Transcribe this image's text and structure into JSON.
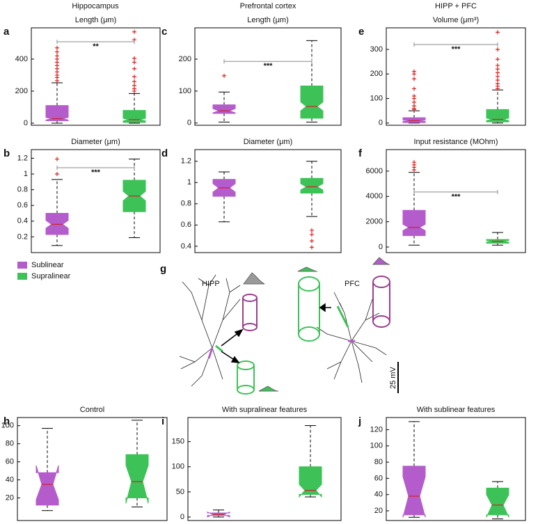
{
  "legend": [
    {
      "name": "Sublinear",
      "color": "#b45ccb"
    },
    {
      "name": "Supralinear",
      "color": "#3dc257"
    }
  ],
  "column_titles": [
    "Hippocampus",
    "Prefrontal cortex",
    "HIPP + PFC"
  ],
  "diagram": {
    "label": "g",
    "hipp": "HIPP",
    "pfc": "PFC",
    "scale": "25 mV"
  },
  "chart_data": [
    {
      "type": "box",
      "label": "a",
      "title": "Length (μm)",
      "ylim": [
        -13,
        595
      ],
      "yticks": [
        0,
        200,
        400
      ],
      "boxes": [
        {
          "whisker_low": 0,
          "q1": 15,
          "notch_low": 20,
          "median": 28,
          "notch_high": 36,
          "q3": 110,
          "whisker_high": 252,
          "outliers": [
            265,
            285,
            300,
            320,
            340,
            360,
            380,
            400,
            420,
            445,
            470
          ]
        },
        {
          "whisker_low": 0,
          "q1": 5,
          "notch_low": 14,
          "median": 22,
          "notch_high": 30,
          "q3": 80,
          "whisker_high": 185,
          "outliers": [
            200,
            215,
            235,
            260,
            290,
            340,
            380,
            405,
            520,
            570
          ]
        }
      ],
      "significance": {
        "y": 508,
        "label": "**"
      }
    },
    {
      "type": "box",
      "label": "b",
      "title": "Diameter (μm)",
      "ylim": [
        0,
        1.31
      ],
      "yticks": [
        0.2,
        0.4,
        0.6,
        0.8,
        1,
        1.2
      ],
      "boxes": [
        {
          "whisker_low": 0.09,
          "q1": 0.23,
          "notch_low": 0.31,
          "median": 0.36,
          "notch_high": 0.41,
          "q3": 0.5,
          "whisker_high": 0.93,
          "outliers": [
            1.0,
            1.19
          ]
        },
        {
          "whisker_low": 0.19,
          "q1": 0.52,
          "notch_low": 0.66,
          "median": 0.72,
          "notch_high": 0.78,
          "q3": 0.92,
          "whisker_high": 1.19,
          "outliers": []
        }
      ],
      "significance": {
        "y": 1.08,
        "label": "***"
      }
    },
    {
      "type": "box",
      "label": "c",
      "title": "Length (μm)",
      "ylim": [
        -7,
        298
      ],
      "yticks": [
        0,
        100,
        200
      ],
      "boxes": [
        {
          "whisker_low": 3,
          "q1": 30,
          "notch_low": 32,
          "median": 38,
          "notch_high": 45,
          "q3": 57,
          "whisker_high": 97,
          "outliers": [
            148
          ]
        },
        {
          "whisker_low": 3,
          "q1": 15,
          "notch_low": 38,
          "median": 52,
          "notch_high": 66,
          "q3": 116,
          "whisker_high": 258,
          "outliers": []
        }
      ],
      "significance": {
        "y": 193,
        "label": "***"
      }
    },
    {
      "type": "box",
      "label": "d",
      "title": "Diameter (μm)",
      "ylim": [
        0.34,
        1.31
      ],
      "yticks": [
        0.4,
        0.6,
        0.8,
        1,
        1.2
      ],
      "boxes": [
        {
          "whisker_low": 0.63,
          "q1": 0.87,
          "notch_low": 0.91,
          "median": 0.95,
          "notch_high": 0.99,
          "q3": 1.03,
          "whisker_high": 1.1,
          "outliers": []
        },
        {
          "whisker_low": 0.68,
          "q1": 0.9,
          "notch_low": 0.93,
          "median": 0.96,
          "notch_high": 0.99,
          "q3": 1.04,
          "whisker_high": 1.2,
          "outliers": [
            0.55,
            0.51,
            0.45,
            0.39
          ]
        }
      ]
    },
    {
      "type": "box",
      "label": "e",
      "title": "Volume (μm³)",
      "ylim": [
        -9,
        388
      ],
      "yticks": [
        0,
        100,
        200,
        300
      ],
      "boxes": [
        {
          "whisker_low": 0,
          "q1": 2,
          "notch_low": 7,
          "median": 10,
          "notch_high": 13,
          "q3": 22,
          "whisker_high": 50,
          "outliers": [
            55,
            60,
            70,
            85,
            100,
            110,
            140,
            180,
            200,
            210
          ]
        },
        {
          "whisker_low": 0,
          "q1": 5,
          "notch_low": 10,
          "median": 15,
          "notch_high": 20,
          "q3": 55,
          "whisker_high": 135,
          "outliers": [
            140,
            150,
            160,
            175,
            190,
            205,
            220,
            235,
            260,
            300,
            370
          ]
        }
      ],
      "significance": {
        "y": 320,
        "label": "***"
      }
    },
    {
      "type": "box",
      "label": "f",
      "title": "Input resistance (MOhm)",
      "ylim": [
        -440,
        7700
      ],
      "yticks": [
        0,
        2000,
        4000,
        6000
      ],
      "boxes": [
        {
          "whisker_low": 150,
          "q1": 900,
          "notch_low": 1300,
          "median": 1550,
          "notch_high": 1800,
          "q3": 2900,
          "whisker_high": 5900,
          "outliers": [
            6100,
            6300,
            6500,
            6700
          ]
        },
        {
          "whisker_low": 150,
          "q1": 300,
          "notch_low": 380,
          "median": 450,
          "notch_high": 520,
          "q3": 600,
          "whisker_high": 1150,
          "outliers": []
        }
      ],
      "significance": {
        "y": 4350,
        "label": "***"
      }
    },
    {
      "type": "box",
      "label": "h",
      "title": "Control",
      "ylim": [
        -5,
        109
      ],
      "yticks": [
        20,
        40,
        60,
        80,
        100
      ],
      "boxes": [
        {
          "whisker_low": 6,
          "q1": 12,
          "notch_low": 18,
          "median": 35,
          "notch_high": 56,
          "q3": 48,
          "whisker_high": 97,
          "outliers": []
        },
        {
          "whisker_low": 10,
          "q1": 20,
          "notch_low": 14,
          "median": 38,
          "notch_high": 56,
          "q3": 68,
          "whisker_high": 106,
          "outliers": []
        }
      ]
    },
    {
      "type": "box",
      "label": "i",
      "title": "With supralinear features",
      "ylim": [
        -7,
        198
      ],
      "yticks": [
        0,
        50,
        100,
        150
      ],
      "boxes": [
        {
          "whisker_low": 0,
          "q1": 3,
          "notch_low": 0,
          "median": 5,
          "notch_high": 10,
          "q3": 8,
          "whisker_high": 14,
          "outliers": []
        },
        {
          "whisker_low": 40,
          "q1": 45,
          "notch_low": 40,
          "median": 53,
          "notch_high": 65,
          "q3": 100,
          "whisker_high": 182,
          "outliers": []
        }
      ]
    },
    {
      "type": "box",
      "label": "j",
      "title": "With sublinear features",
      "ylim": [
        8,
        135
      ],
      "yticks": [
        20,
        40,
        60,
        80,
        100,
        120
      ],
      "boxes": [
        {
          "whisker_low": 12,
          "q1": 15,
          "notch_low": 12,
          "median": 38,
          "notch_high": 62,
          "q3": 75,
          "whisker_high": 130,
          "outliers": []
        },
        {
          "whisker_low": 10,
          "q1": 15,
          "notch_low": 12,
          "median": 27,
          "notch_high": 40,
          "q3": 48,
          "whisker_high": 56,
          "outliers": []
        }
      ]
    }
  ]
}
